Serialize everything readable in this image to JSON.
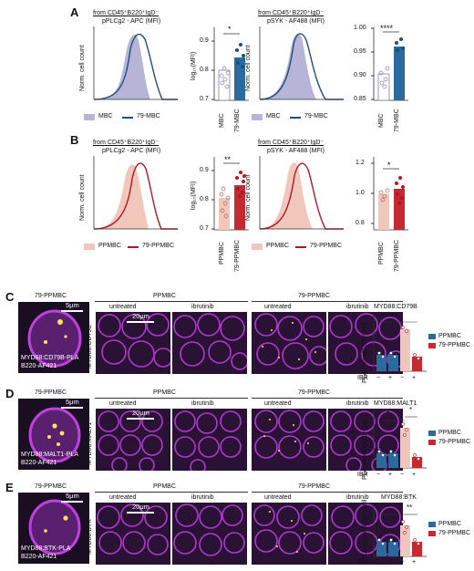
{
  "panel_labels": [
    "A",
    "B",
    "C",
    "D",
    "E"
  ],
  "panelA": {
    "gate_left": "from CD45⁺B220⁺IgD⁻",
    "gate_right": "from CD45⁺B220⁺IgD⁻",
    "marker_left": "pPLCg2 - APC (MFI)",
    "marker_right": "pSYK - AF488 (MFI)",
    "ylabel_hist": "Norm. cell count",
    "ylabel_bar": "log₁₀(MFI)",
    "legend": [
      "MBC",
      "79-MBC"
    ],
    "sig_left": "*",
    "sig_right": "****",
    "yticks_left": [
      "0.9",
      "0.8",
      "0.7"
    ],
    "yticks_right": [
      "1.00",
      "0.95",
      "0.90",
      "0.85"
    ],
    "categories": [
      "MBC",
      "79-MBC"
    ]
  },
  "panelB": {
    "gate_left": "from CD45⁺B220⁺IgD⁻",
    "gate_right": "from CD45⁺B220⁺IgD⁻",
    "marker_left": "pPLCg2 - APC (MFI)",
    "marker_right": "pSYK - AF488 (MFI)",
    "ylabel_hist": "Norm. cell count",
    "ylabel_bar": "log₁₀(MFI)",
    "legend": [
      "PPMBC",
      "79-PPMBC"
    ],
    "sig_left": "**",
    "sig_right": "*",
    "yticks_left": [
      "0.9",
      "0.8",
      "0.7"
    ],
    "yticks_right": [
      "1.2",
      "1.0",
      "0.8"
    ],
    "categories": [
      "PPMBC",
      "79-PPMBC"
    ]
  },
  "panelC": {
    "title_left": "79-PPMBC",
    "scale_single": "5μm",
    "scale_grid": "20μm",
    "stain_top": "MYD88:CD79B-PLA",
    "stain_bottom": "B220-AF421",
    "group_ppmbc": "PPMBC",
    "group_79": "79-PPMBC",
    "untreated": "untreated",
    "ibrutinib": "ibrutinib",
    "row_label": "MYD88:CD79B",
    "chart_title": "MYD88:CD79B",
    "ylabel": "PLA count/B220⁺ cell",
    "sig": "**********",
    "legend": [
      "PPMBC",
      "79-PPMBC"
    ],
    "ibr_label": "IBR",
    "ibr_marks": [
      "−",
      "+",
      "−",
      "+"
    ]
  },
  "panelD": {
    "title_left": "79-PPMBC",
    "scale_single": "5μm",
    "scale_grid": "20μm",
    "stain_top": "MYD88:MALT1-PLA",
    "stain_bottom": "B220-AF421",
    "group_ppmbc": "PPMBC",
    "group_79": "79-PPMBC",
    "untreated": "untreated",
    "ibrutinib": "ibrutinib",
    "row_label": "MYD88:MALT1",
    "chart_title": "MYD88:MALT1",
    "ylabel": "PLA count/B220⁺ cell",
    "sig1": "*",
    "sig2": "*",
    "legend": [
      "PPMBC",
      "79-PPMBC"
    ],
    "ibr_label": "IBR",
    "ibr_marks": [
      "−",
      "+",
      "−",
      "+"
    ]
  },
  "panelE": {
    "title_left": "79-PPMBC",
    "scale_single": "5μm",
    "scale_grid": "20μm",
    "stain_top": "MYD88:BTK-PLA",
    "stain_bottom": "B220-AF421",
    "group_ppmbc": "PPMBC",
    "group_79": "79-PPMBC",
    "untreated": "untreated",
    "ibrutinib": "ibrutinib",
    "row_label": "MYD88:BTK",
    "chart_title": "MYD88:BTK",
    "ylabel": "PLA count/B220⁺ cell",
    "sig1": "**",
    "sig2": "**",
    "legend": [
      "PPMBC",
      "79-PPMBC"
    ],
    "ibr_label": "IBR",
    "ibr_marks": [
      "−",
      "+",
      "−",
      "+"
    ]
  },
  "colors": {
    "mbc_fill": "#b6b5d8",
    "mbc79_line": "#1f4f7a",
    "ppmbc_fill": "#f2c7bb",
    "ppmbc79_line": "#b0182a",
    "bar_blue": "#2a6a9e",
    "bar_red": "#c42a30",
    "microscopy_magenta": "#c040e0"
  },
  "chart_data": [
    {
      "type": "bar",
      "panel": "A-left",
      "categories": [
        "MBC",
        "79-MBC"
      ],
      "values": [
        0.815,
        0.865
      ]
    },
    {
      "type": "bar",
      "panel": "A-right",
      "categories": [
        "MBC",
        "79-MBC"
      ],
      "values": [
        0.935,
        1.02
      ]
    },
    {
      "type": "bar",
      "panel": "B-left",
      "categories": [
        "PPMBC",
        "79-PPMBC"
      ],
      "values": [
        0.82,
        0.87
      ]
    },
    {
      "type": "bar",
      "panel": "B-right",
      "categories": [
        "PPMBC",
        "79-PPMBC"
      ],
      "values": [
        0.95,
        1.01
      ]
    },
    {
      "type": "bar",
      "panel": "C",
      "categories": [
        "PPMBC -",
        "PPMBC +",
        "79-PPMBC -",
        "79-PPMBC +"
      ],
      "values": [
        0.4,
        0.4,
        1.3,
        0.35
      ]
    },
    {
      "type": "bar",
      "panel": "D",
      "categories": [
        "PPMBC -",
        "PPMBC +",
        "79-PPMBC -",
        "79-PPMBC +"
      ],
      "values": [
        0.35,
        0.35,
        1.2,
        0.3
      ]
    },
    {
      "type": "bar",
      "panel": "E",
      "categories": [
        "PPMBC -",
        "PPMBC +",
        "79-PPMBC -",
        "79-PPMBC +"
      ],
      "values": [
        0.4,
        0.4,
        0.9,
        0.4
      ]
    }
  ]
}
